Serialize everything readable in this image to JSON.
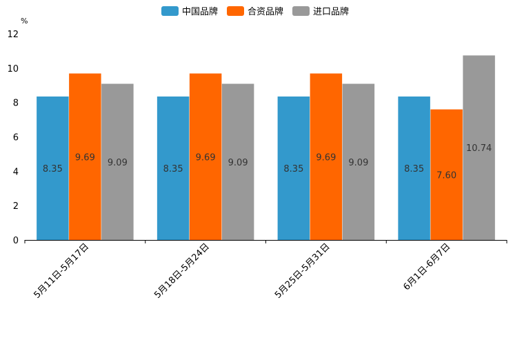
{
  "chart_data": {
    "type": "bar",
    "ylabel": "%",
    "ylim": [
      0,
      12
    ],
    "yticks": [
      0,
      2,
      4,
      6,
      8,
      10,
      12
    ],
    "categories": [
      "5月11日-5月17日",
      "5月18日-5月24日",
      "5月25日-5月31日",
      "6月1日-6月7日"
    ],
    "series": [
      {
        "name": "中国品牌",
        "color": "#3399CC",
        "values": [
          8.35,
          8.35,
          8.35,
          8.35
        ],
        "labels": [
          "8.35",
          "8.35",
          "8.35",
          "8.35"
        ]
      },
      {
        "name": "合资品牌",
        "color": "#FF6600",
        "values": [
          9.69,
          9.69,
          9.69,
          7.6
        ],
        "labels": [
          "9.69",
          "9.69",
          "9.69",
          "7.60"
        ]
      },
      {
        "name": "进口品牌",
        "color": "#999999",
        "values": [
          9.09,
          9.09,
          9.09,
          10.74
        ],
        "labels": [
          "9.09",
          "9.09",
          "9.09",
          "10.74"
        ]
      }
    ],
    "legend_position": "top-center",
    "grid": false
  }
}
